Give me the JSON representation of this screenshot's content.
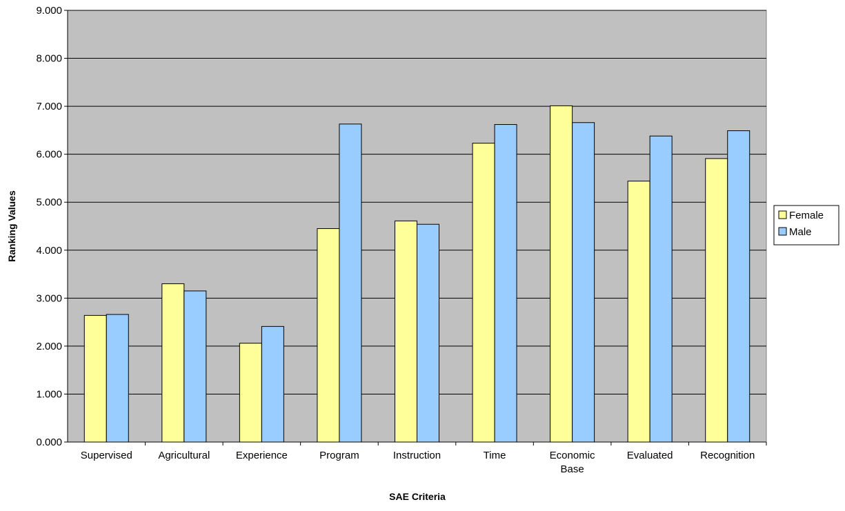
{
  "chart_data": {
    "type": "bar",
    "title": "",
    "xlabel": "SAE Criteria",
    "ylabel": "Ranking Values",
    "ylim": [
      0,
      9
    ],
    "yticks": [
      "0.000",
      "1.000",
      "2.000",
      "3.000",
      "4.000",
      "5.000",
      "6.000",
      "7.000",
      "8.000",
      "9.000"
    ],
    "categories": [
      [
        "Supervised"
      ],
      [
        "Agricultural"
      ],
      [
        "Experience"
      ],
      [
        "Program"
      ],
      [
        "Instruction"
      ],
      [
        "Time"
      ],
      [
        "Economic",
        "Base"
      ],
      [
        "Evaluated"
      ],
      [
        "Recognition"
      ]
    ],
    "series": [
      {
        "name": "Female",
        "color": "#FFFF99",
        "values": [
          2.64,
          3.3,
          2.06,
          4.45,
          4.61,
          6.23,
          7.01,
          5.44,
          5.91
        ]
      },
      {
        "name": "Male",
        "color": "#99CCFF",
        "values": [
          2.66,
          3.15,
          2.41,
          6.63,
          4.54,
          6.62,
          6.66,
          6.38,
          6.49
        ]
      }
    ],
    "grid": true,
    "plot_background": "#C0C0C0",
    "legend_position": "right"
  }
}
